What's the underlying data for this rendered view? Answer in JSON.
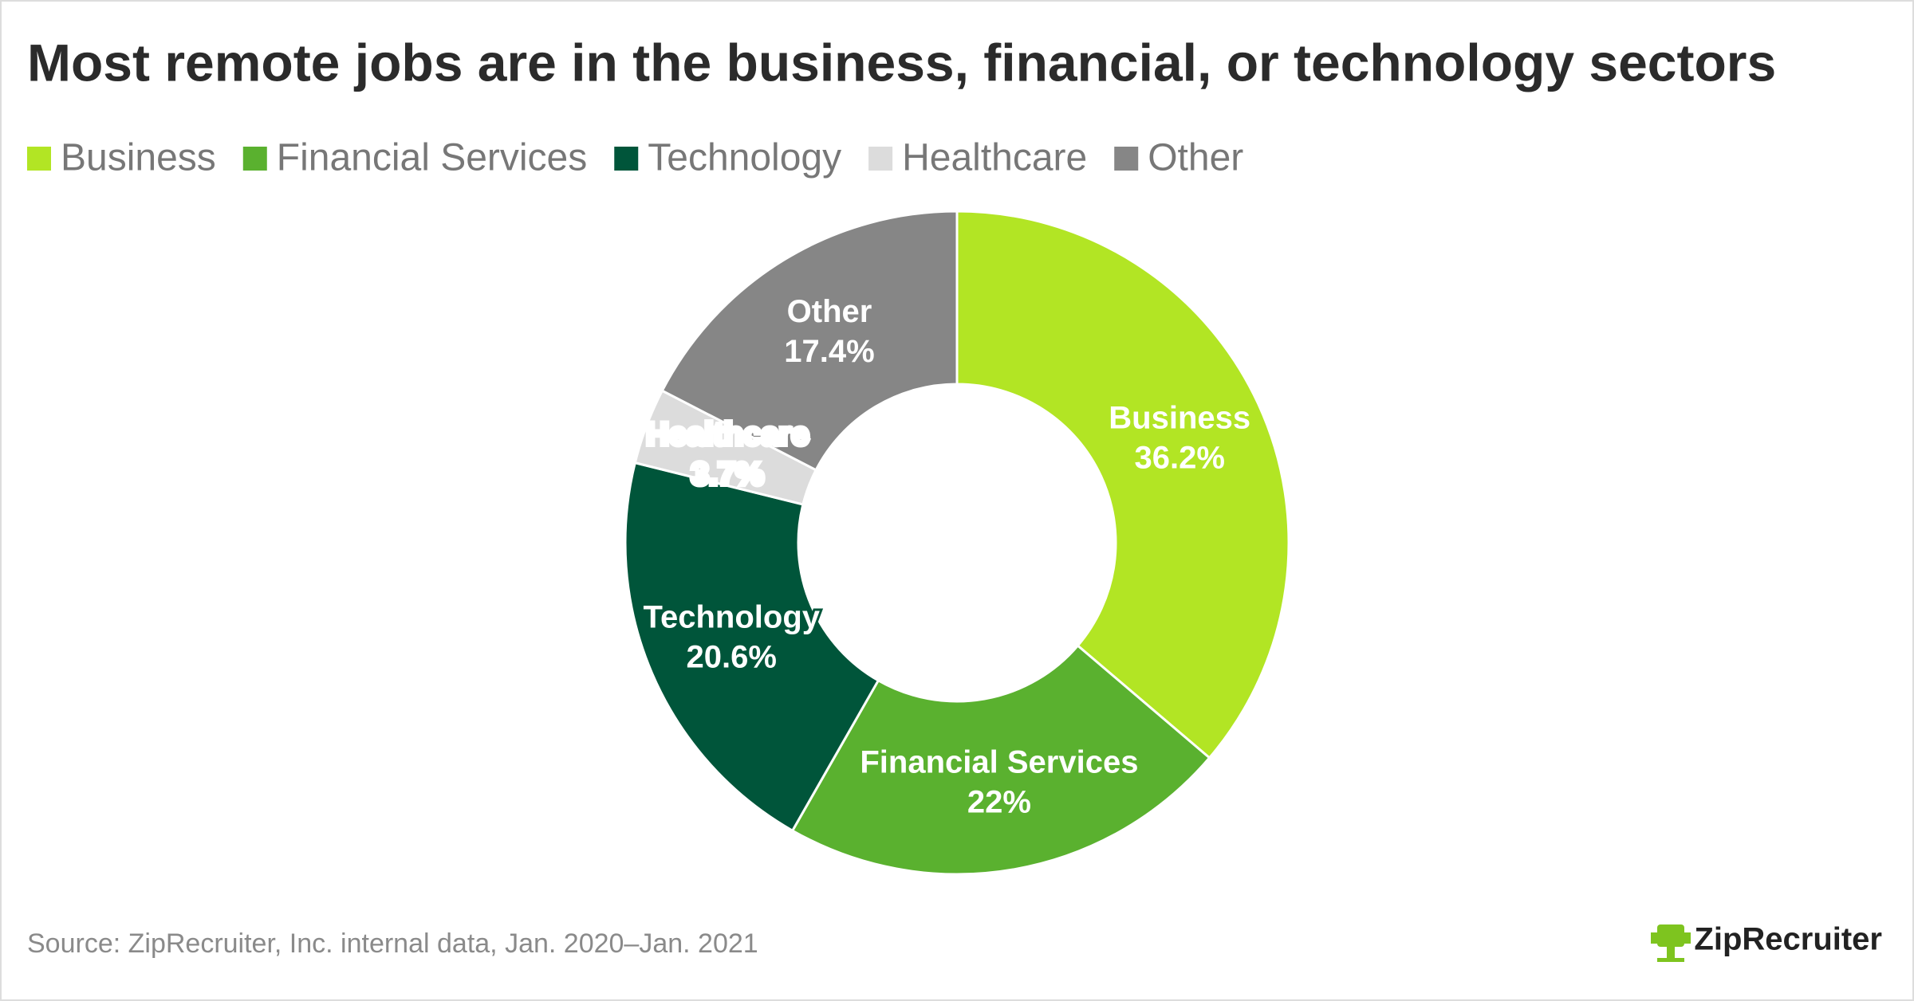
{
  "chart_data": {
    "type": "donut",
    "title": "Most remote jobs are in the business, financial, or technology sectors",
    "categories": [
      "Business",
      "Financial Services",
      "Technology",
      "Healthcare",
      "Other"
    ],
    "values": [
      36.2,
      22,
      20.6,
      3.7,
      17.4
    ],
    "value_labels": [
      "36.2%",
      "22%",
      "20.6%",
      "3.7%",
      "17.4%"
    ],
    "colors": [
      "#b2e524",
      "#5ab12f",
      "#00553a",
      "#dcdcdc",
      "#868686"
    ],
    "label_colors": [
      "#ffffff",
      "#ffffff",
      "#ffffff",
      "#000000",
      "#ffffff"
    ],
    "legend": "top-left",
    "source": "Source: ZipRecruiter, Inc. internal data, Jan. 2020–Jan. 2021",
    "logo": "ZipRecruiter"
  }
}
